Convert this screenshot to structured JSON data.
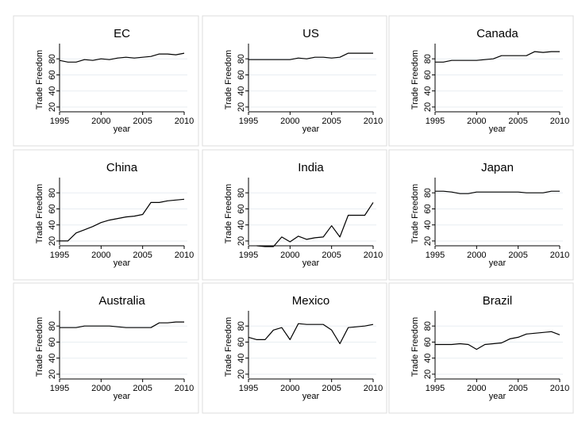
{
  "chart_data": [
    {
      "type": "line",
      "title": "EC",
      "xlabel": "year",
      "ylabel": "Trade Freedom",
      "xlim": [
        1995,
        2010
      ],
      "ylim": [
        15,
        97
      ],
      "xticks": [
        1995,
        2000,
        2005,
        2010
      ],
      "yticks": [
        20,
        40,
        60,
        80
      ],
      "x": [
        1995,
        1996,
        1997,
        1998,
        1999,
        2000,
        2001,
        2002,
        2003,
        2004,
        2005,
        2006,
        2007,
        2008,
        2009,
        2010
      ],
      "values": [
        78,
        76,
        76,
        79,
        78,
        80,
        79,
        81,
        82,
        81,
        82,
        83,
        86,
        86,
        85,
        87
      ]
    },
    {
      "type": "line",
      "title": "US",
      "xlabel": "year",
      "ylabel": "Trade Freedom",
      "xlim": [
        1995,
        2010
      ],
      "ylim": [
        15,
        97
      ],
      "xticks": [
        1995,
        2000,
        2005,
        2010
      ],
      "yticks": [
        20,
        40,
        60,
        80
      ],
      "x": [
        1995,
        1996,
        1997,
        1998,
        1999,
        2000,
        2001,
        2002,
        2003,
        2004,
        2005,
        2006,
        2007,
        2008,
        2009,
        2010
      ],
      "values": [
        79,
        79,
        79,
        79,
        79,
        79,
        81,
        80,
        82,
        82,
        81,
        82,
        87,
        87,
        87,
        87
      ]
    },
    {
      "type": "line",
      "title": "Canada",
      "xlabel": "year",
      "ylabel": "Trade Freedom",
      "xlim": [
        1995,
        2010
      ],
      "ylim": [
        15,
        97
      ],
      "xticks": [
        1995,
        2000,
        2005,
        2010
      ],
      "yticks": [
        20,
        40,
        60,
        80
      ],
      "x": [
        1995,
        1996,
        1997,
        1998,
        1999,
        2000,
        2001,
        2002,
        2003,
        2004,
        2005,
        2006,
        2007,
        2008,
        2009,
        2010
      ],
      "values": [
        76,
        76,
        78,
        78,
        78,
        78,
        79,
        80,
        84,
        84,
        84,
        84,
        89,
        88,
        89,
        89
      ]
    },
    {
      "type": "line",
      "title": "China",
      "xlabel": "year",
      "ylabel": "Trade Freedom",
      "xlim": [
        1995,
        2010
      ],
      "ylim": [
        15,
        97
      ],
      "xticks": [
        1995,
        2000,
        2005,
        2010
      ],
      "yticks": [
        20,
        40,
        60,
        80
      ],
      "x": [
        1995,
        1996,
        1997,
        1998,
        1999,
        2000,
        2001,
        2002,
        2003,
        2004,
        2005,
        2006,
        2007,
        2008,
        2009,
        2010
      ],
      "values": [
        20,
        20,
        30,
        34,
        38,
        43,
        46,
        48,
        50,
        51,
        53,
        68,
        68,
        70,
        71,
        72
      ]
    },
    {
      "type": "line",
      "title": "India",
      "xlabel": "year",
      "ylabel": "Trade Freedom",
      "xlim": [
        1995,
        2010
      ],
      "ylim": [
        15,
        97
      ],
      "xticks": [
        1995,
        2000,
        2005,
        2010
      ],
      "yticks": [
        20,
        40,
        60,
        80
      ],
      "x": [
        1996,
        1997,
        1998,
        1999,
        2000,
        2001,
        2002,
        2003,
        2004,
        2005,
        2006,
        2007,
        2008,
        2009,
        2010
      ],
      "values": [
        14,
        13,
        13,
        25,
        19,
        26,
        22,
        24,
        25,
        39,
        25,
        52,
        52,
        52,
        68
      ]
    },
    {
      "type": "line",
      "title": "Japan",
      "xlabel": "year",
      "ylabel": "Trade Freedom",
      "xlim": [
        1995,
        2010
      ],
      "ylim": [
        15,
        97
      ],
      "xticks": [
        1995,
        2000,
        2005,
        2010
      ],
      "yticks": [
        20,
        40,
        60,
        80
      ],
      "x": [
        1995,
        1996,
        1997,
        1998,
        1999,
        2000,
        2001,
        2002,
        2003,
        2004,
        2005,
        2006,
        2007,
        2008,
        2009,
        2010
      ],
      "values": [
        82,
        82,
        81,
        79,
        79,
        81,
        81,
        81,
        81,
        81,
        81,
        80,
        80,
        80,
        82,
        82
      ]
    },
    {
      "type": "line",
      "title": "Australia",
      "xlabel": "year",
      "ylabel": "Trade Freedom",
      "xlim": [
        1995,
        2010
      ],
      "ylim": [
        15,
        97
      ],
      "xticks": [
        1995,
        2000,
        2005,
        2010
      ],
      "yticks": [
        20,
        40,
        60,
        80
      ],
      "x": [
        1995,
        1996,
        1997,
        1998,
        1999,
        2000,
        2001,
        2002,
        2003,
        2004,
        2005,
        2006,
        2007,
        2008,
        2009,
        2010
      ],
      "values": [
        78,
        78,
        78,
        80,
        80,
        80,
        80,
        79,
        78,
        78,
        78,
        78,
        84,
        84,
        85,
        85
      ]
    },
    {
      "type": "line",
      "title": "Mexico",
      "xlabel": "year",
      "ylabel": "Trade Freedom",
      "xlim": [
        1995,
        2010
      ],
      "ylim": [
        15,
        97
      ],
      "xticks": [
        1995,
        2000,
        2005,
        2010
      ],
      "yticks": [
        20,
        40,
        60,
        80
      ],
      "x": [
        1995,
        1996,
        1997,
        1998,
        1999,
        2000,
        2001,
        2002,
        2003,
        2004,
        2005,
        2006,
        2007,
        2008,
        2009,
        2010
      ],
      "values": [
        66,
        63,
        63,
        75,
        78,
        63,
        83,
        82,
        82,
        82,
        75,
        58,
        78,
        79,
        80,
        82
      ]
    },
    {
      "type": "line",
      "title": "Brazil",
      "xlabel": "year",
      "ylabel": "Trade Freedom",
      "xlim": [
        1995,
        2010
      ],
      "ylim": [
        15,
        97
      ],
      "xticks": [
        1995,
        2000,
        2005,
        2010
      ],
      "yticks": [
        20,
        40,
        60,
        80
      ],
      "x": [
        1995,
        1996,
        1997,
        1998,
        1999,
        2000,
        2001,
        2002,
        2003,
        2004,
        2005,
        2006,
        2007,
        2008,
        2009,
        2010
      ],
      "values": [
        57,
        57,
        57,
        58,
        57,
        51,
        57,
        58,
        59,
        64,
        66,
        70,
        71,
        72,
        73,
        69
      ]
    }
  ]
}
